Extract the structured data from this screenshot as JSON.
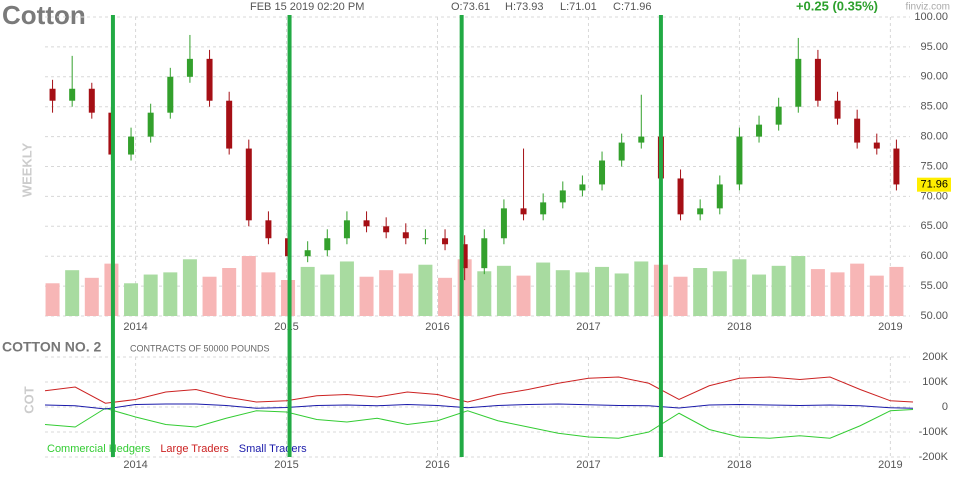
{
  "chart_data": [
    {
      "type": "candlestick",
      "title": "Cotton",
      "date": "FEB 15 2019 02:20 PM",
      "ohlc_labels": [
        "O:73.61",
        "H:73.93",
        "L:71.01",
        "C:71.96"
      ],
      "change": "+0.25 (0.35%)",
      "source": "finviz.com",
      "ylabel": "WEEKLY",
      "x": [
        2013.45,
        2013.58,
        2013.71,
        2013.84,
        2013.97,
        2014.1,
        2014.23,
        2014.36,
        2014.49,
        2014.62,
        2014.75,
        2014.88,
        2015.01,
        2015.14,
        2015.27,
        2015.4,
        2015.53,
        2015.66,
        2015.79,
        2015.92,
        2016.05,
        2016.18,
        2016.31,
        2016.44,
        2016.57,
        2016.7,
        2016.83,
        2016.96,
        2017.09,
        2017.22,
        2017.35,
        2017.48,
        2017.61,
        2017.74,
        2017.87,
        2018.0,
        2018.13,
        2018.26,
        2018.39,
        2018.52,
        2018.65,
        2018.78,
        2018.91,
        2019.04
      ],
      "open": [
        88,
        86,
        88,
        84,
        77,
        80,
        84,
        90,
        93,
        86,
        78,
        66,
        63,
        60,
        61,
        63,
        66,
        65,
        64,
        63,
        63,
        62,
        58,
        63,
        68,
        67,
        69,
        71,
        72,
        76,
        79,
        80,
        73,
        67,
        68,
        72,
        80,
        82,
        85,
        93,
        86,
        83,
        79,
        78
      ],
      "high": [
        89.5,
        93.5,
        89,
        85,
        81.5,
        85.5,
        91.5,
        97,
        94.5,
        87.5,
        79.5,
        67.5,
        64.5,
        62.5,
        64.5,
        67.5,
        67.5,
        66.5,
        65.5,
        64.5,
        64.5,
        63.5,
        64.5,
        69.5,
        78,
        70.5,
        72.5,
        73.5,
        77.5,
        80.5,
        87,
        81.5,
        74.5,
        69.5,
        73.5,
        81.5,
        83.5,
        86.5,
        96.5,
        94.5,
        87.5,
        84.5,
        80.5,
        79.5
      ],
      "low": [
        84,
        85,
        83,
        76,
        76,
        79,
        83,
        89,
        85,
        77,
        65,
        62,
        59,
        59,
        60,
        62,
        64,
        63,
        62,
        62,
        61,
        56,
        57,
        62,
        66,
        66,
        68,
        70,
        71,
        75,
        78,
        72,
        66,
        66,
        67,
        71,
        79,
        81,
        84,
        85,
        82,
        78,
        77,
        71
      ],
      "close": [
        86,
        88,
        84,
        77,
        80,
        84,
        90,
        93,
        86,
        78,
        66,
        63,
        60,
        61,
        63,
        66,
        65,
        64,
        63,
        63,
        62,
        58,
        63,
        68,
        67,
        69,
        71,
        72,
        76,
        79,
        80,
        73,
        67,
        68,
        72,
        80,
        82,
        85,
        93,
        86,
        83,
        79,
        78,
        72
      ],
      "volume": [
        30,
        42,
        35,
        48,
        30,
        38,
        40,
        52,
        36,
        44,
        55,
        40,
        33,
        45,
        38,
        50,
        36,
        42,
        39,
        47,
        35,
        52,
        41,
        46,
        37,
        49,
        42,
        40,
        45,
        39,
        50,
        47,
        36,
        44,
        41,
        52,
        38,
        46,
        55,
        43,
        40,
        48,
        37,
        45
      ],
      "up_color": "#33a02c",
      "down_color": "#a50f15",
      "up_volume_color": "#a8dba0",
      "down_volume_color": "#f7b6b6",
      "xlim": [
        2013.4,
        2019.13
      ],
      "xticks": [
        2014,
        2015,
        2016,
        2017,
        2018,
        2019
      ],
      "ylim": [
        50,
        100
      ],
      "yticks": [
        {
          "value": 50,
          "label": "50.00"
        },
        {
          "value": 55,
          "label": "55.00"
        },
        {
          "value": 60,
          "label": "60.00"
        },
        {
          "value": 65,
          "label": "65.00"
        },
        {
          "value": 70,
          "label": "70.00"
        },
        {
          "value": 75,
          "label": "75.00"
        },
        {
          "value": 80,
          "label": "80.00"
        },
        {
          "value": 85,
          "label": "85.00"
        },
        {
          "value": 90,
          "label": "90.00"
        },
        {
          "value": 95,
          "label": "95.00"
        },
        {
          "value": 100,
          "label": "100.00"
        }
      ],
      "last_price": {
        "value": 71.96,
        "label": "71.96"
      },
      "markers": [
        2013.85,
        2015.02,
        2016.16,
        2017.48
      ],
      "marker_color": "#22aa44",
      "grid": true
    },
    {
      "type": "line",
      "title": "COTTON NO. 2",
      "subtitle": "CONTRACTS OF 50000 POUNDS",
      "ylabel": "COT",
      "x": [
        2013.4,
        2013.6,
        2013.8,
        2014.0,
        2014.2,
        2014.4,
        2014.6,
        2014.8,
        2015.0,
        2015.2,
        2015.4,
        2015.6,
        2015.8,
        2016.0,
        2016.2,
        2016.4,
        2016.6,
        2016.8,
        2017.0,
        2017.2,
        2017.4,
        2017.6,
        2017.8,
        2018.0,
        2018.2,
        2018.4,
        2018.6,
        2018.8,
        2019.0,
        2019.15
      ],
      "series": [
        {
          "name": "Commercial Hedgers",
          "color": "#33cc33",
          "values": [
            -70000,
            -80000,
            -5000,
            -40000,
            -70000,
            -80000,
            -45000,
            -15000,
            -20000,
            -50000,
            -60000,
            -45000,
            -70000,
            -55000,
            -15000,
            -55000,
            -80000,
            -105000,
            -120000,
            -125000,
            -100000,
            -25000,
            -90000,
            -120000,
            -125000,
            -115000,
            -125000,
            -75000,
            -15000,
            -10000
          ]
        },
        {
          "name": "Large Traders",
          "color": "#cc2222",
          "values": [
            65000,
            80000,
            15000,
            30000,
            60000,
            70000,
            40000,
            20000,
            25000,
            45000,
            50000,
            40000,
            60000,
            50000,
            20000,
            50000,
            70000,
            95000,
            115000,
            120000,
            95000,
            30000,
            85000,
            115000,
            120000,
            110000,
            120000,
            70000,
            25000,
            20000
          ]
        },
        {
          "name": "Small Traders",
          "color": "#1a1aaa",
          "values": [
            8000,
            5000,
            -8000,
            10000,
            12000,
            12000,
            6000,
            -5000,
            -2000,
            6000,
            8000,
            5000,
            10000,
            6000,
            -3000,
            6000,
            10000,
            12000,
            9000,
            6000,
            5000,
            -4000,
            8000,
            10000,
            8000,
            6000,
            8000,
            5000,
            -3000,
            -5000
          ]
        }
      ],
      "xlim": [
        2013.4,
        2019.13
      ],
      "xticks": [
        2014,
        2015,
        2016,
        2017,
        2018,
        2019
      ],
      "ylim": [
        -200000,
        200000
      ],
      "yticks": [
        {
          "value": -200000,
          "label": "-200K"
        },
        {
          "value": -100000,
          "label": "-100K"
        },
        0,
        {
          "value": 100000,
          "label": "100K"
        },
        {
          "value": 200000,
          "label": "200K"
        }
      ],
      "legend": "bottom-left",
      "grid": true
    }
  ]
}
